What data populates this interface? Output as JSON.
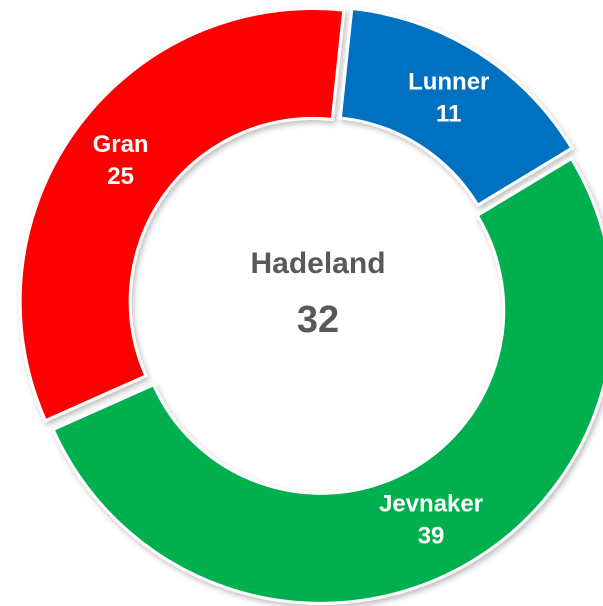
{
  "chart_data": {
    "type": "donut",
    "center_label": "Hadeland",
    "center_value": 32,
    "categories": [
      "Lunner",
      "Jevnaker",
      "Gran"
    ],
    "values": [
      11,
      39,
      25
    ],
    "colors": [
      "#0070c0",
      "#00b050",
      "#ff0000"
    ]
  }
}
